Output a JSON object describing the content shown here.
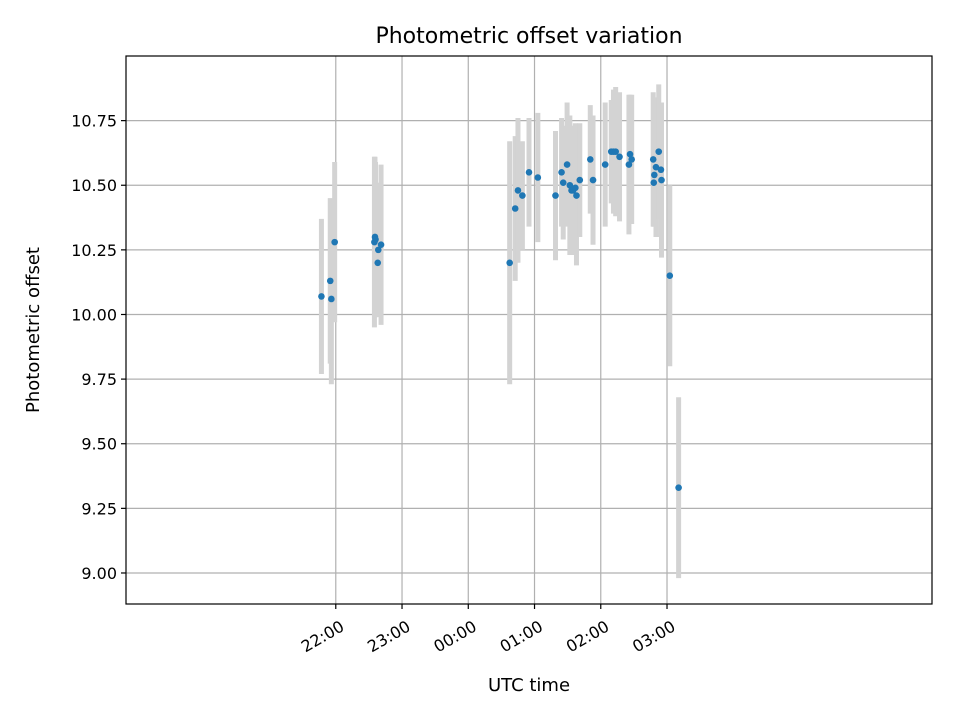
{
  "chart_data": {
    "type": "scatter",
    "title": "Photometric offset variation",
    "xlabel": "UTC time",
    "ylabel": "Photometric offset",
    "x_unit": "minutes relative to 00:00 UTC",
    "xlim": [
      -310,
      420
    ],
    "ylim": [
      8.88,
      11.0
    ],
    "grid": true,
    "x_ticks": [
      {
        "value": -120,
        "label": "22:00"
      },
      {
        "value": -60,
        "label": "23:00"
      },
      {
        "value": 0,
        "label": "00:00"
      },
      {
        "value": 60,
        "label": "01:00"
      },
      {
        "value": 120,
        "label": "02:00"
      },
      {
        "value": 180,
        "label": "03:00"
      }
    ],
    "y_ticks": [
      {
        "value": 9.0,
        "label": "9.00"
      },
      {
        "value": 9.25,
        "label": "9.25"
      },
      {
        "value": 9.5,
        "label": "9.50"
      },
      {
        "value": 9.75,
        "label": "9.75"
      },
      {
        "value": 10.0,
        "label": "10.00"
      },
      {
        "value": 10.25,
        "label": "10.25"
      },
      {
        "value": 10.5,
        "label": "10.50"
      },
      {
        "value": 10.75,
        "label": "10.75"
      }
    ],
    "colors": {
      "point": "#1f77b4",
      "errorbar": "#d3d3d3",
      "grid": "#b0b0b0"
    },
    "points": [
      {
        "t": -133,
        "y": 10.07,
        "yerr": 0.3
      },
      {
        "t": -125,
        "y": 10.13,
        "yerr": 0.32
      },
      {
        "t": -124,
        "y": 10.06,
        "yerr": 0.33
      },
      {
        "t": -121,
        "y": 10.28,
        "yerr": 0.31
      },
      {
        "t": -85,
        "y": 10.28,
        "yerr": 0.33
      },
      {
        "t": -84.5,
        "y": 10.3,
        "yerr": 0.31
      },
      {
        "t": -84,
        "y": 10.29,
        "yerr": 0.3
      },
      {
        "t": -82,
        "y": 10.2,
        "yerr": 0.2
      },
      {
        "t": -81.5,
        "y": 10.25,
        "yerr": 0.26
      },
      {
        "t": -79,
        "y": 10.27,
        "yerr": 0.31
      },
      {
        "t": 37.5,
        "y": 10.2,
        "yerr": 0.47
      },
      {
        "t": 42.5,
        "y": 10.41,
        "yerr": 0.28
      },
      {
        "t": 45,
        "y": 10.48,
        "yerr": 0.28
      },
      {
        "t": 49,
        "y": 10.46,
        "yerr": 0.21
      },
      {
        "t": 55,
        "y": 10.55,
        "yerr": 0.21
      },
      {
        "t": 63,
        "y": 10.53,
        "yerr": 0.25
      },
      {
        "t": 79,
        "y": 10.46,
        "yerr": 0.25
      },
      {
        "t": 84.5,
        "y": 10.55,
        "yerr": 0.21
      },
      {
        "t": 86,
        "y": 10.51,
        "yerr": 0.22
      },
      {
        "t": 89.5,
        "y": 10.58,
        "yerr": 0.24
      },
      {
        "t": 92,
        "y": 10.5,
        "yerr": 0.27
      },
      {
        "t": 93.5,
        "y": 10.48,
        "yerr": 0.25
      },
      {
        "t": 95,
        "y": 10.48,
        "yerr": 0.25
      },
      {
        "t": 97,
        "y": 10.49,
        "yerr": 0.25
      },
      {
        "t": 98,
        "y": 10.46,
        "yerr": 0.27
      },
      {
        "t": 101,
        "y": 10.52,
        "yerr": 0.22
      },
      {
        "t": 110.5,
        "y": 10.6,
        "yerr": 0.21
      },
      {
        "t": 113,
        "y": 10.52,
        "yerr": 0.25
      },
      {
        "t": 124,
        "y": 10.58,
        "yerr": 0.24
      },
      {
        "t": 129.5,
        "y": 10.63,
        "yerr": 0.2
      },
      {
        "t": 131.5,
        "y": 10.63,
        "yerr": 0.24
      },
      {
        "t": 133.5,
        "y": 10.63,
        "yerr": 0.25
      },
      {
        "t": 137,
        "y": 10.61,
        "yerr": 0.25
      },
      {
        "t": 145.5,
        "y": 10.58,
        "yerr": 0.27
      },
      {
        "t": 146.5,
        "y": 10.62,
        "yerr": 0.23
      },
      {
        "t": 148,
        "y": 10.6,
        "yerr": 0.25
      },
      {
        "t": 167.5,
        "y": 10.6,
        "yerr": 0.26
      },
      {
        "t": 168,
        "y": 10.51,
        "yerr": 0.17
      },
      {
        "t": 168.5,
        "y": 10.54,
        "yerr": 0.2
      },
      {
        "t": 170,
        "y": 10.57,
        "yerr": 0.27
      },
      {
        "t": 172.5,
        "y": 10.63,
        "yerr": 0.26
      },
      {
        "t": 174.5,
        "y": 10.56,
        "yerr": 0.26
      },
      {
        "t": 175,
        "y": 10.52,
        "yerr": 0.3
      },
      {
        "t": 182.5,
        "y": 10.15,
        "yerr": 0.35
      },
      {
        "t": 190.5,
        "y": 9.33,
        "yerr": 0.35
      }
    ]
  }
}
